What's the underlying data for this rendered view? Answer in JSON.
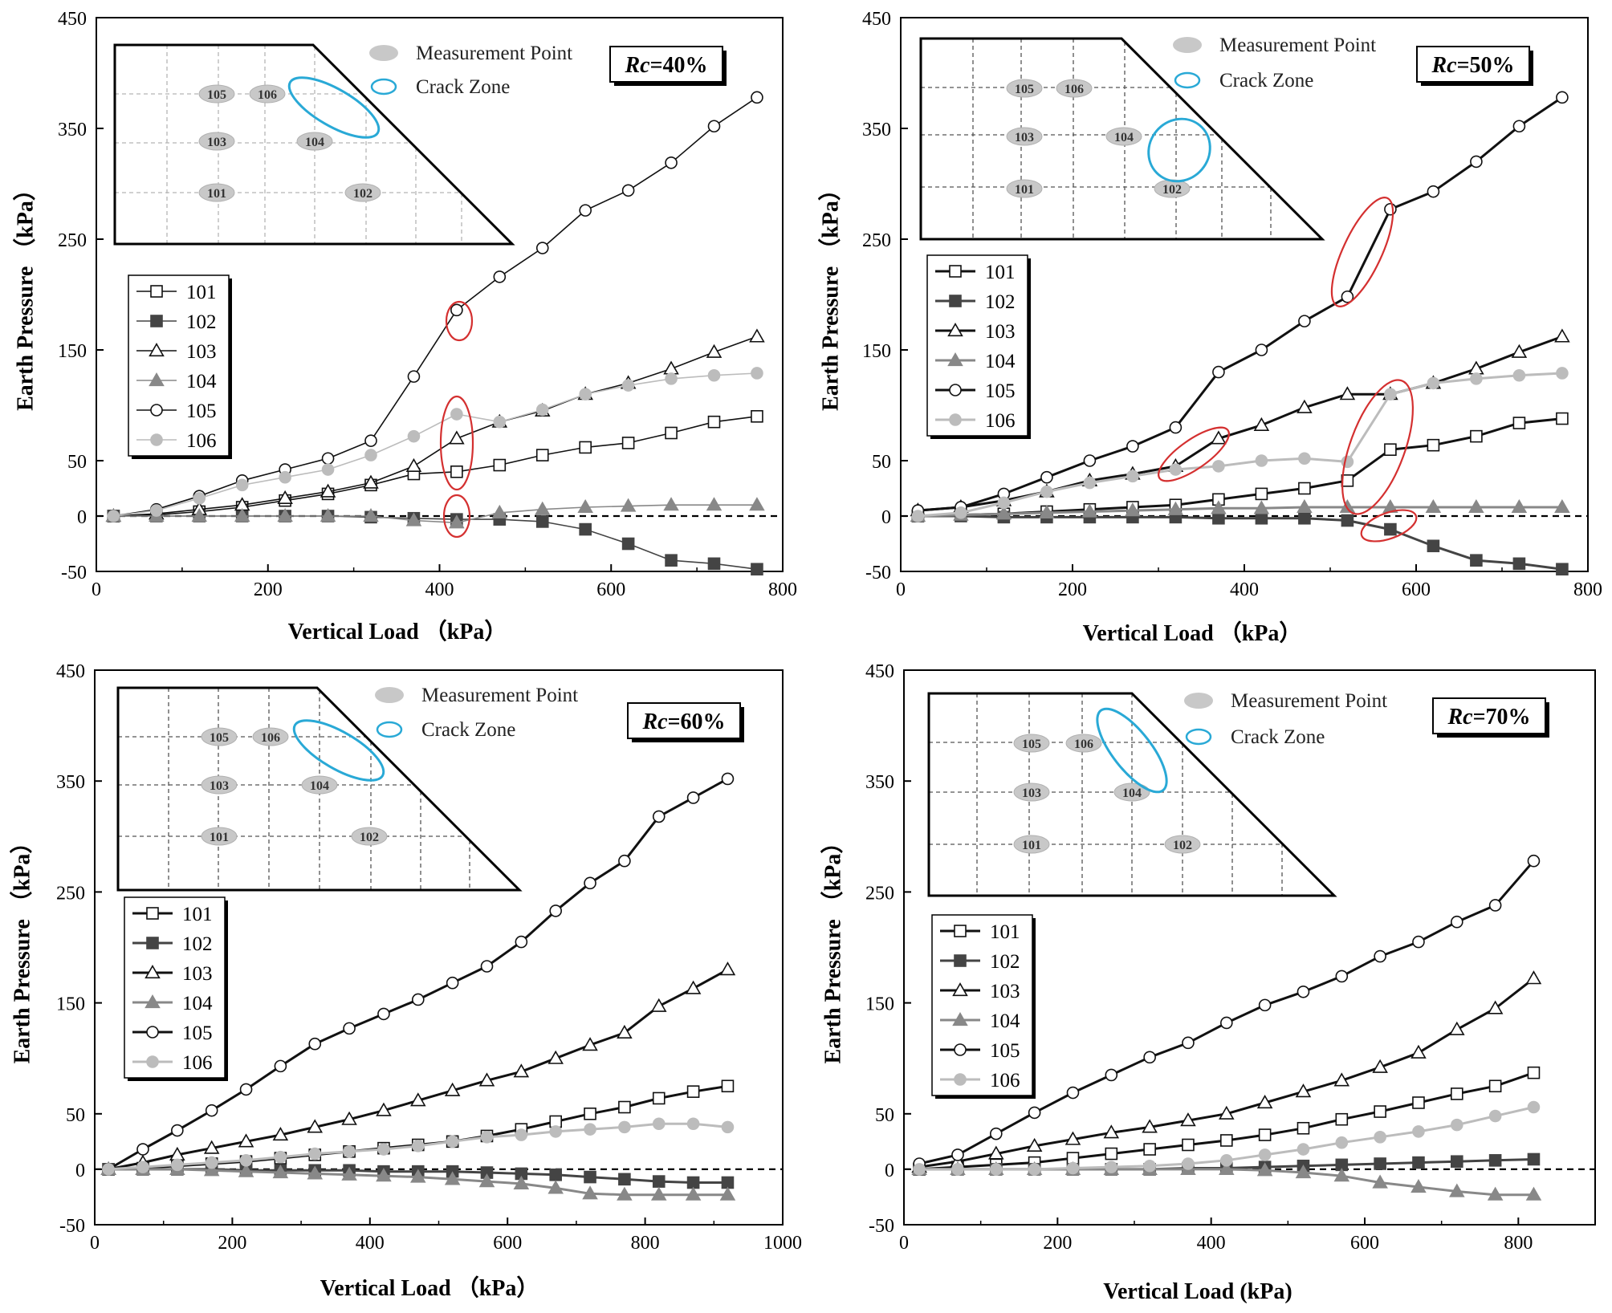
{
  "legend_common": {
    "measurement_point": "Measurement Point",
    "crack_zone": "Crack Zone"
  },
  "chart_data": [
    {
      "type": "line",
      "title": "Rc=40%",
      "title_prefix": "Rc",
      "title_value": "=40%",
      "xlabel": "Vertical Load （kPa）",
      "ylabel": "Earth Pressure （kPa）",
      "xlim": [
        0,
        800
      ],
      "ylim": [
        -50,
        450
      ],
      "xticks": [
        "0",
        "200",
        "400",
        "600",
        "800"
      ],
      "yticks": [
        "-50",
        "0",
        "50",
        "150",
        "250",
        "350",
        "450"
      ],
      "style": "light",
      "inset_labels": [
        "105",
        "106",
        "103",
        "104",
        "101",
        "102"
      ],
      "x": [
        20,
        70,
        120,
        170,
        220,
        270,
        320,
        370,
        420,
        470,
        520,
        570,
        620,
        670,
        720,
        770
      ],
      "series": [
        {
          "name": "101",
          "values": [
            0,
            1,
            4,
            8,
            14,
            20,
            28,
            38,
            40,
            46,
            55,
            62,
            66,
            75,
            85,
            90
          ]
        },
        {
          "name": "102",
          "values": [
            0,
            0,
            0,
            0,
            0,
            0,
            -1,
            -2,
            -3,
            -3,
            -5,
            -12,
            -25,
            -40,
            -43,
            -48
          ]
        },
        {
          "name": "103",
          "values": [
            0,
            2,
            6,
            10,
            16,
            22,
            30,
            45,
            70,
            85,
            95,
            110,
            120,
            133,
            148,
            162
          ]
        },
        {
          "name": "104",
          "values": [
            0,
            0,
            0,
            0,
            0,
            0,
            0,
            -4,
            -6,
            3,
            6,
            8,
            9,
            10,
            10,
            10
          ]
        },
        {
          "name": "105",
          "values": [
            0,
            6,
            18,
            32,
            42,
            52,
            68,
            126,
            186,
            216,
            242,
            276,
            294,
            319,
            352,
            378
          ]
        },
        {
          "name": "106",
          "values": [
            0,
            5,
            16,
            28,
            35,
            42,
            55,
            72,
            92,
            85,
            96,
            110,
            118,
            124,
            127,
            129
          ]
        }
      ]
    },
    {
      "type": "line",
      "title": "Rc=50%",
      "title_prefix": "Rc",
      "title_value": "=50%",
      "xlabel": "Vertical Load （kPa）",
      "ylabel": "Earth Pressure （kPa）",
      "xlim": [
        0,
        800
      ],
      "ylim": [
        -50,
        450
      ],
      "xticks": [
        "0",
        "200",
        "400",
        "600",
        "800"
      ],
      "yticks": [
        "-50",
        "0",
        "50",
        "150",
        "250",
        "350",
        "450"
      ],
      "style": "bold",
      "inset_labels": [
        "105",
        "106",
        "103",
        "104",
        "101",
        "102"
      ],
      "x": [
        20,
        70,
        120,
        170,
        220,
        270,
        320,
        370,
        420,
        470,
        520,
        570,
        620,
        670,
        720,
        770
      ],
      "series": [
        {
          "name": "101",
          "values": [
            0,
            1,
            2,
            4,
            6,
            8,
            10,
            15,
            20,
            25,
            32,
            60,
            64,
            72,
            84,
            88
          ]
        },
        {
          "name": "102",
          "values": [
            0,
            0,
            -1,
            -1,
            -1,
            -1,
            -1,
            -2,
            -2,
            -2,
            -4,
            -12,
            -27,
            -40,
            -43,
            -48
          ]
        },
        {
          "name": "103",
          "values": [
            5,
            8,
            14,
            22,
            32,
            38,
            45,
            70,
            82,
            98,
            110,
            110,
            120,
            133,
            148,
            162
          ]
        },
        {
          "name": "104",
          "values": [
            0,
            1,
            2,
            3,
            4,
            5,
            6,
            7,
            7,
            8,
            8,
            8,
            8,
            8,
            8,
            8
          ]
        },
        {
          "name": "105",
          "values": [
            5,
            8,
            20,
            35,
            50,
            63,
            80,
            130,
            150,
            176,
            198,
            277,
            293,
            320,
            352,
            378
          ]
        },
        {
          "name": "106",
          "values": [
            0,
            3,
            12,
            22,
            30,
            36,
            42,
            45,
            50,
            52,
            49,
            110,
            120,
            124,
            127,
            129
          ]
        }
      ]
    },
    {
      "type": "line",
      "title": "Rc=60%",
      "title_prefix": "Rc",
      "title_value": "=60%",
      "xlabel": "Vertical Load （kPa）",
      "ylabel": "Earth Pressure （kPa）",
      "xlim": [
        0,
        1000
      ],
      "ylim": [
        -50,
        450
      ],
      "xticks": [
        "0",
        "200",
        "400",
        "600",
        "800",
        "1000"
      ],
      "yticks": [
        "-50",
        "0",
        "50",
        "150",
        "250",
        "350",
        "450"
      ],
      "style": "bold",
      "inset_labels": [
        "105",
        "106",
        "103",
        "104",
        "101",
        "102"
      ],
      "x": [
        20,
        70,
        120,
        170,
        220,
        270,
        320,
        370,
        420,
        470,
        520,
        570,
        620,
        670,
        720,
        770,
        820,
        870,
        920
      ],
      "series": [
        {
          "name": "101",
          "values": [
            0,
            1,
            3,
            5,
            7,
            10,
            13,
            16,
            19,
            22,
            25,
            30,
            36,
            43,
            50,
            56,
            64,
            70,
            75
          ]
        },
        {
          "name": "102",
          "values": [
            0,
            0,
            0,
            0,
            -1,
            -1,
            -1,
            -1,
            -2,
            -2,
            -2,
            -3,
            -4,
            -5,
            -7,
            -9,
            -11,
            -12,
            -12
          ]
        },
        {
          "name": "103",
          "values": [
            0,
            6,
            13,
            19,
            25,
            31,
            38,
            45,
            53,
            62,
            71,
            80,
            88,
            100,
            112,
            123,
            147,
            163,
            180
          ]
        },
        {
          "name": "104",
          "values": [
            0,
            0,
            0,
            -1,
            -2,
            -3,
            -4,
            -5,
            -6,
            -7,
            -9,
            -11,
            -13,
            -17,
            -22,
            -23,
            -23,
            -23,
            -23
          ]
        },
        {
          "name": "105",
          "values": [
            0,
            18,
            35,
            53,
            72,
            93,
            113,
            127,
            140,
            153,
            168,
            183,
            205,
            233,
            258,
            278,
            318,
            335,
            352
          ]
        },
        {
          "name": "106",
          "values": [
            0,
            2,
            4,
            6,
            8,
            11,
            14,
            16,
            18,
            21,
            25,
            29,
            31,
            34,
            36,
            38,
            41,
            41,
            38
          ]
        }
      ]
    },
    {
      "type": "line",
      "title": "Rc=70%",
      "title_prefix": "Rc",
      "title_value": "=70%",
      "xlabel": "Vertical Load (kPa)",
      "ylabel": "Earth Pressure （kPa）",
      "xlim": [
        0,
        900
      ],
      "ylim": [
        -50,
        450
      ],
      "xticks": [
        "0",
        "200",
        "400",
        "600",
        "800"
      ],
      "yticks": [
        "-50",
        "0",
        "50",
        "150",
        "250",
        "350",
        "450"
      ],
      "style": "bold",
      "inset_labels": [
        "105",
        "106",
        "103",
        "104",
        "101",
        "102"
      ],
      "x": [
        20,
        70,
        120,
        170,
        220,
        270,
        320,
        370,
        420,
        470,
        520,
        570,
        620,
        670,
        720,
        770,
        820
      ],
      "series": [
        {
          "name": "101",
          "values": [
            0,
            2,
            4,
            6,
            10,
            14,
            18,
            22,
            26,
            31,
            37,
            45,
            52,
            60,
            68,
            75,
            87
          ]
        },
        {
          "name": "102",
          "values": [
            0,
            0,
            0,
            0,
            0,
            0,
            0,
            1,
            1,
            2,
            3,
            4,
            5,
            6,
            7,
            8,
            9
          ]
        },
        {
          "name": "103",
          "values": [
            2,
            7,
            14,
            21,
            27,
            33,
            38,
            44,
            50,
            60,
            70,
            80,
            92,
            105,
            126,
            145,
            172
          ]
        },
        {
          "name": "104",
          "values": [
            0,
            0,
            0,
            0,
            0,
            0,
            0,
            0,
            0,
            -1,
            -3,
            -6,
            -12,
            -16,
            -20,
            -23,
            -23
          ]
        },
        {
          "name": "105",
          "values": [
            5,
            13,
            32,
            51,
            69,
            85,
            101,
            114,
            132,
            148,
            160,
            174,
            192,
            205,
            223,
            238,
            278
          ]
        },
        {
          "name": "106",
          "values": [
            0,
            0,
            0,
            0,
            1,
            2,
            3,
            5,
            8,
            13,
            18,
            24,
            29,
            34,
            40,
            48,
            56
          ]
        }
      ]
    }
  ]
}
